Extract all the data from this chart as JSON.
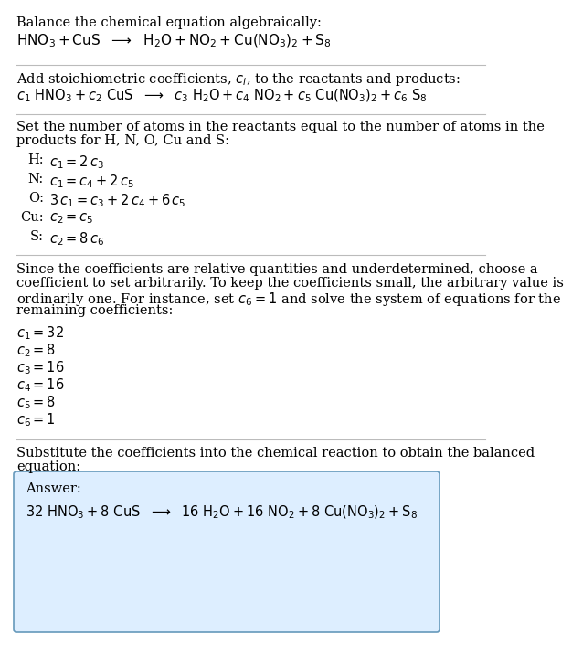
{
  "bg_color": "#ffffff",
  "text_color": "#000000",
  "answer_box_facecolor": "#ddeeff",
  "answer_box_edgecolor": "#6699bb",
  "fs": 10.5,
  "fs_math": 10.5,
  "line1": "Balance the chemical equation algebraically:",
  "eq1": "$\\mathrm{HNO_3 + CuS \\ \\ \\longrightarrow \\ \\ H_2O + NO_2 + Cu(NO_3)_2 + S_8}$",
  "line3": "Add stoichiometric coefficients, $c_i$, to the reactants and products:",
  "eq2": "$c_1\\ \\mathrm{HNO_3} + c_2\\ \\mathrm{CuS}\\ \\ \\longrightarrow\\ \\ c_3\\ \\mathrm{H_2O} + c_4\\ \\mathrm{NO_2} + c_5\\ \\mathrm{Cu(NO_3)_2} + c_6\\ \\mathrm{S_8}$",
  "line5a": "Set the number of atoms in the reactants equal to the number of atoms in the",
  "line5b": "products for H, N, O, Cu and S:",
  "eq_labels": [
    "H:",
    "N:",
    "O:",
    "Cu:",
    "S:"
  ],
  "eq_exprs": [
    "$c_1 = 2\\,c_3$",
    "$c_1 = c_4 + 2\\,c_5$",
    "$3\\,c_1 = c_3 + 2\\,c_4 + 6\\,c_5$",
    "$c_2 = c_5$",
    "$c_2 = 8\\,c_6$"
  ],
  "para2a": "Since the coefficients are relative quantities and underdetermined, choose a",
  "para2b": "coefficient to set arbitrarily. To keep the coefficients small, the arbitrary value is",
  "para2c": "ordinarily one. For instance, set $c_6 = 1$ and solve the system of equations for the",
  "para2d": "remaining coefficients:",
  "coeff_lines": [
    "$c_1 = 32$",
    "$c_2 = 8$",
    "$c_3 = 16$",
    "$c_4 = 16$",
    "$c_5 = 8$",
    "$c_6 = 1$"
  ],
  "sub_line1": "Substitute the coefficients into the chemical reaction to obtain the balanced",
  "sub_line2": "equation:",
  "answer_label": "Answer:",
  "answer_eq": "$32\\ \\mathrm{HNO_3} + 8\\ \\mathrm{CuS}\\ \\ \\longrightarrow\\ \\ 16\\ \\mathrm{H_2O} + 16\\ \\mathrm{NO_2} + 8\\ \\mathrm{Cu(NO_3)_2} + \\mathrm{S_8}$"
}
